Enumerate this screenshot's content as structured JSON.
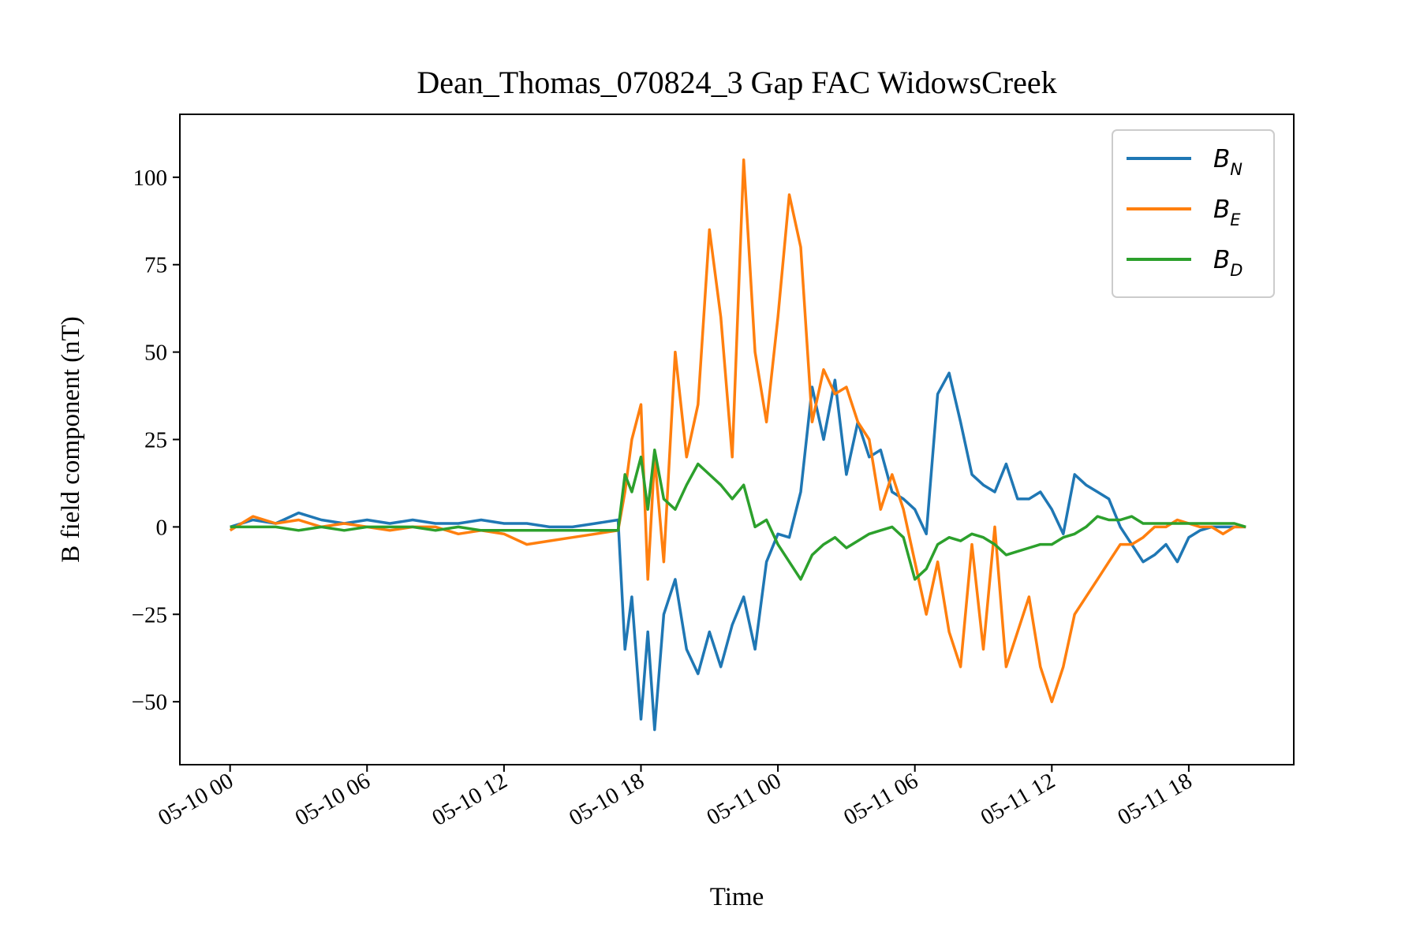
{
  "chart_data": {
    "type": "line",
    "title": "Dean_Thomas_070824_3 Gap FAC WidowsCreek",
    "xlabel": "Time",
    "ylabel": "B field component (nT)",
    "x_unit": "hours from 05-10 00",
    "xlim": [
      -2.2,
      46.6
    ],
    "ylim": [
      -68,
      118
    ],
    "x_ticks": [
      0,
      6,
      12,
      18,
      24,
      30,
      36,
      42
    ],
    "x_tick_labels": [
      "05-10 00",
      "05-10 06",
      "05-10 12",
      "05-10 18",
      "05-11 00",
      "05-11 06",
      "05-11 12",
      "05-11 18"
    ],
    "y_ticks": [
      -50,
      -25,
      0,
      25,
      50,
      75,
      100
    ],
    "y_tick_labels": [
      "−50",
      "−25",
      "0",
      "25",
      "50",
      "75",
      "100"
    ],
    "grid": false,
    "legend_position": "top-right",
    "x": [
      0,
      1,
      2,
      3,
      4,
      5,
      6,
      7,
      8,
      9,
      10,
      11,
      12,
      13,
      14,
      15,
      16,
      17,
      17.3,
      17.6,
      18,
      18.3,
      18.6,
      19,
      19.5,
      20,
      20.5,
      21,
      21.5,
      22,
      22.5,
      23,
      23.5,
      24,
      24.5,
      25,
      25.5,
      26,
      26.5,
      27,
      27.5,
      28,
      28.5,
      29,
      29.5,
      30,
      30.5,
      31,
      31.5,
      32,
      32.5,
      33,
      33.5,
      34,
      34.5,
      35,
      35.5,
      36,
      36.5,
      37,
      37.5,
      38,
      38.5,
      39,
      39.5,
      40,
      40.5,
      41,
      41.5,
      42,
      42.5,
      43,
      43.5,
      44,
      44.5
    ],
    "series": [
      {
        "name": "B",
        "subscript": "N",
        "color": "#1f77b4",
        "values": [
          0,
          2,
          1,
          4,
          2,
          1,
          2,
          1,
          2,
          1,
          1,
          2,
          1,
          1,
          0,
          0,
          1,
          2,
          -35,
          -20,
          -55,
          -30,
          -58,
          -25,
          -15,
          -35,
          -42,
          -30,
          -40,
          -28,
          -20,
          -35,
          -10,
          -2,
          -3,
          10,
          40,
          25,
          42,
          15,
          30,
          20,
          22,
          10,
          8,
          5,
          -2,
          38,
          44,
          30,
          15,
          12,
          10,
          18,
          8,
          8,
          10,
          5,
          -2,
          15,
          12,
          10,
          8,
          0,
          -5,
          -10,
          -8,
          -5,
          -10,
          -3,
          -1,
          0,
          0,
          0,
          0
        ]
      },
      {
        "name": "B",
        "subscript": "E",
        "color": "#ff7f0e",
        "values": [
          -1,
          3,
          1,
          2,
          0,
          1,
          0,
          -1,
          0,
          0,
          -2,
          -1,
          -2,
          -5,
          -4,
          -3,
          -2,
          -1,
          10,
          25,
          35,
          -15,
          20,
          -10,
          50,
          20,
          35,
          85,
          60,
          20,
          105,
          50,
          30,
          60,
          95,
          80,
          30,
          45,
          38,
          40,
          30,
          25,
          5,
          15,
          5,
          -10,
          -25,
          -10,
          -30,
          -40,
          -5,
          -35,
          0,
          -40,
          -30,
          -20,
          -40,
          -50,
          -40,
          -25,
          -20,
          -15,
          -10,
          -5,
          -5,
          -3,
          0,
          0,
          2,
          1,
          0,
          0,
          -2,
          0,
          0
        ]
      },
      {
        "name": "B",
        "subscript": "D",
        "color": "#2ca02c",
        "values": [
          0,
          0,
          0,
          -1,
          0,
          -1,
          0,
          0,
          0,
          -1,
          0,
          -1,
          -1,
          -1,
          -1,
          -1,
          -1,
          -1,
          15,
          10,
          20,
          5,
          22,
          8,
          5,
          12,
          18,
          15,
          12,
          8,
          12,
          0,
          2,
          -5,
          -10,
          -15,
          -8,
          -5,
          -3,
          -6,
          -4,
          -2,
          -1,
          0,
          -3,
          -15,
          -12,
          -5,
          -3,
          -4,
          -2,
          -3,
          -5,
          -8,
          -7,
          -6,
          -5,
          -5,
          -3,
          -2,
          0,
          3,
          2,
          2,
          3,
          1,
          1,
          1,
          1,
          1,
          1,
          1,
          1,
          1,
          0
        ]
      }
    ]
  }
}
